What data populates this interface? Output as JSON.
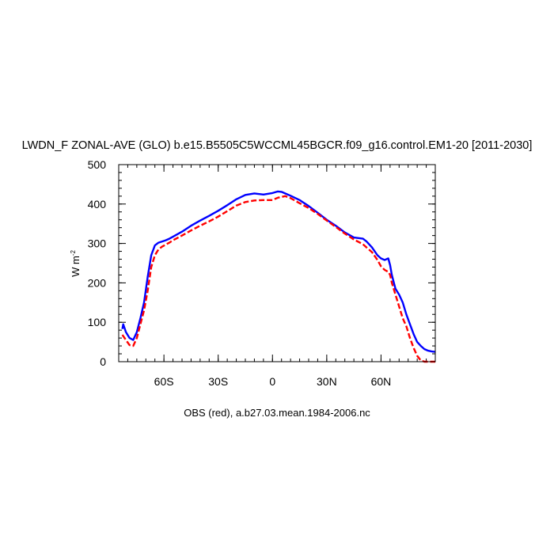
{
  "chart_data": {
    "type": "line",
    "title": "LWDN_F ZONAL-AVE (GLO) b.e15.B5505C5WCCML45BGCR.f09_g16.control.EM1-20 [2011-2030]",
    "xlabel": "OBS (red), a.b27.03.mean.1984-2006.nc",
    "ylabel_base": "W m",
    "ylabel_exp": "-2",
    "xlim": [
      -85,
      90
    ],
    "ylim": [
      0,
      500
    ],
    "x_ticks": [
      {
        "value": -60,
        "label": "60S"
      },
      {
        "value": -30,
        "label": "30S"
      },
      {
        "value": 0,
        "label": "0"
      },
      {
        "value": 30,
        "label": "30N"
      },
      {
        "value": 60,
        "label": "60N"
      }
    ],
    "y_ticks": [
      0,
      100,
      200,
      300,
      400,
      500
    ],
    "series": [
      {
        "name": "",
        "color": "#0000ff",
        "dash": "solid",
        "x": [
          -83,
          -82.5,
          -81,
          -79,
          -77,
          -75,
          -73,
          -71,
          -69,
          -67,
          -65,
          -63,
          -61,
          -59,
          -57,
          -55,
          -50,
          -45,
          -40,
          -35,
          -30,
          -25,
          -20,
          -15,
          -10,
          -5,
          0,
          3,
          5,
          7,
          10,
          15,
          20,
          25,
          30,
          35,
          40,
          45,
          50,
          52,
          55,
          58,
          60,
          62,
          64,
          65,
          66,
          68,
          70,
          72,
          74,
          76,
          78,
          80,
          82,
          84,
          86,
          88,
          90
        ],
        "y": [
          83,
          95,
          75,
          60,
          55,
          75,
          110,
          150,
          215,
          270,
          295,
          302,
          305,
          308,
          312,
          317,
          330,
          345,
          358,
          370,
          383,
          397,
          412,
          423,
          427,
          424,
          428,
          432,
          431,
          427,
          421,
          410,
          395,
          378,
          360,
          345,
          328,
          315,
          312,
          305,
          290,
          270,
          262,
          258,
          262,
          245,
          220,
          185,
          170,
          150,
          120,
          95,
          70,
          50,
          40,
          32,
          28,
          26,
          25
        ]
      },
      {
        "name": "",
        "color": "#ff0000",
        "dash": "dashed",
        "x": [
          -83,
          -81,
          -79,
          -77,
          -75,
          -73,
          -71,
          -69,
          -67,
          -65,
          -63,
          -61,
          -59,
          -57,
          -55,
          -50,
          -45,
          -40,
          -35,
          -30,
          -25,
          -20,
          -15,
          -10,
          -5,
          0,
          3,
          5,
          7,
          10,
          15,
          20,
          25,
          30,
          35,
          40,
          45,
          50,
          52,
          55,
          58,
          60,
          62,
          64,
          65,
          66,
          68,
          70,
          72,
          74,
          76,
          78,
          80,
          82,
          84,
          86,
          88,
          90
        ],
        "y": [
          68,
          55,
          42,
          40,
          60,
          95,
          130,
          180,
          240,
          270,
          285,
          292,
          297,
          302,
          308,
          320,
          333,
          345,
          356,
          368,
          382,
          396,
          405,
          409,
          410,
          410,
          416,
          418,
          420,
          415,
          402,
          390,
          375,
          358,
          342,
          325,
          310,
          298,
          290,
          278,
          258,
          242,
          233,
          228,
          220,
          200,
          170,
          140,
          110,
          90,
          60,
          35,
          15,
          3,
          0,
          0,
          0,
          0
        ]
      }
    ],
    "grid": false,
    "legend": "none"
  }
}
